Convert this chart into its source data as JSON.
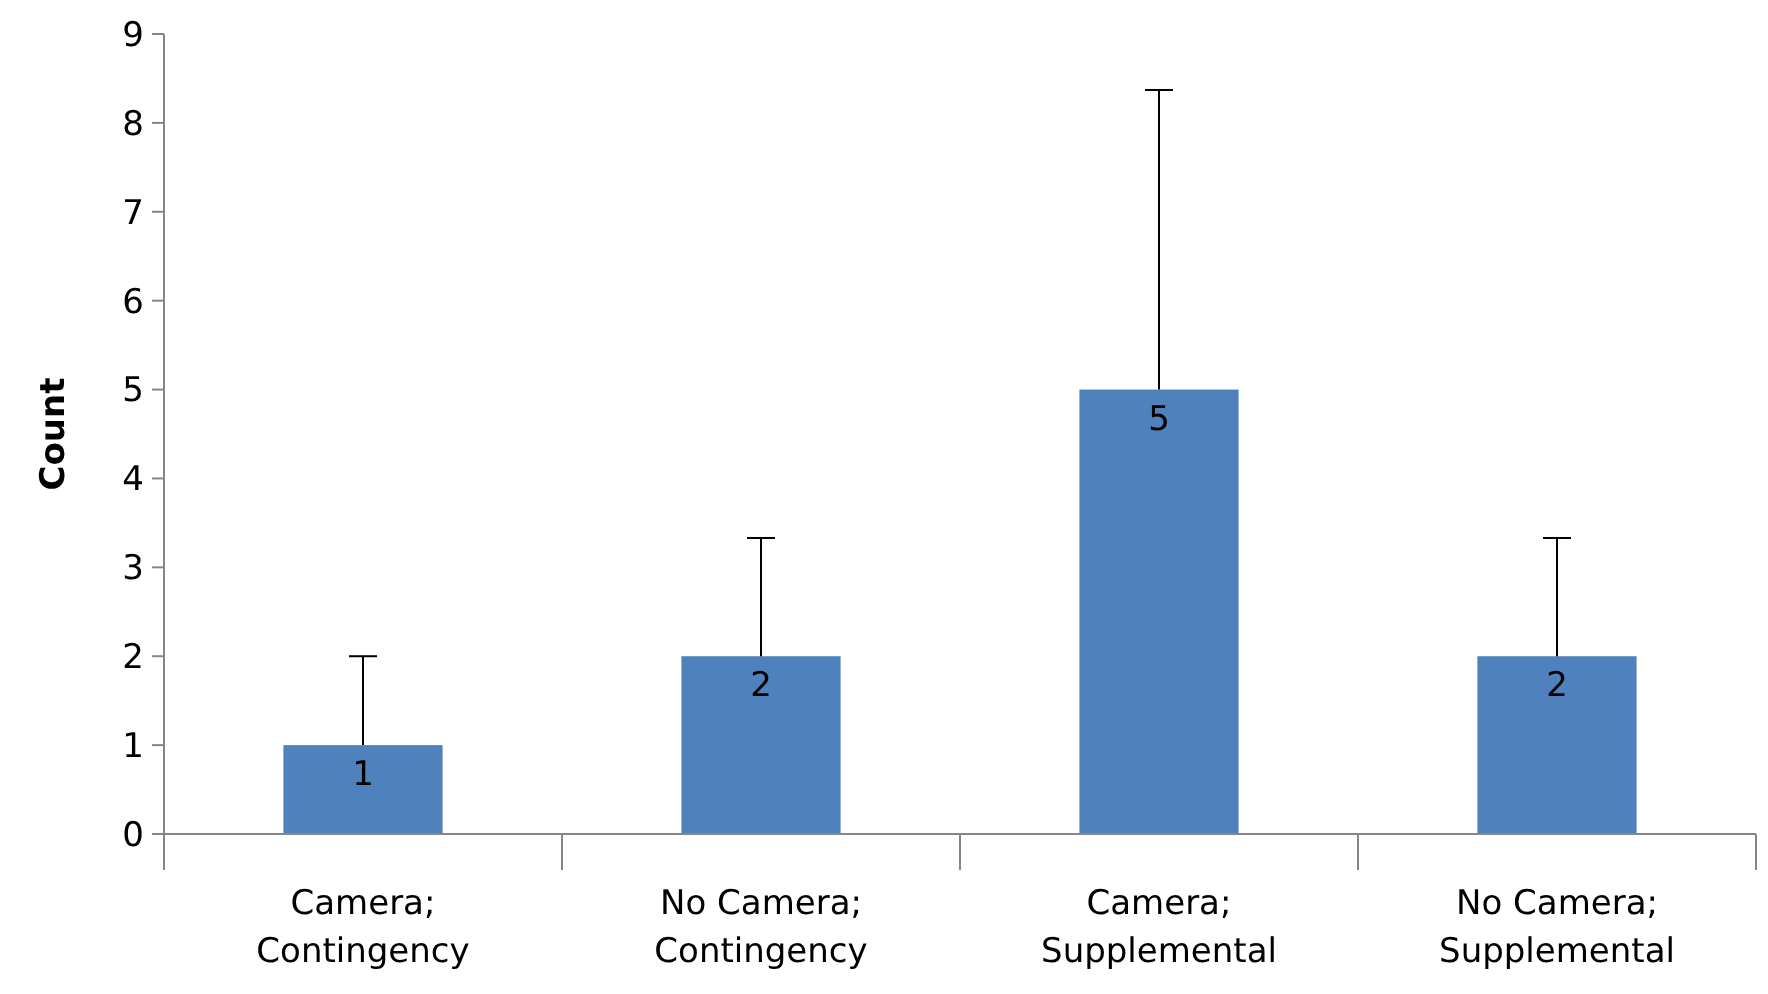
{
  "chart_data": {
    "type": "bar",
    "ylabel": "Count",
    "categories": [
      "Camera; Contingency",
      "No Camera; Contingency",
      "Camera; Supplemental",
      "No Camera; Supplemental"
    ],
    "values": [
      1,
      2,
      5,
      2
    ],
    "errors": [
      [
        1,
        2
      ],
      [
        2,
        3.33
      ],
      [
        5,
        8.37
      ],
      [
        2,
        3.33
      ]
    ],
    "color": "#4f81bd",
    "ylim": [
      0,
      9
    ],
    "yticks": [
      0,
      1,
      2,
      3,
      4,
      5,
      6,
      7,
      8,
      9
    ],
    "grid": false,
    "data_labels": true
  }
}
